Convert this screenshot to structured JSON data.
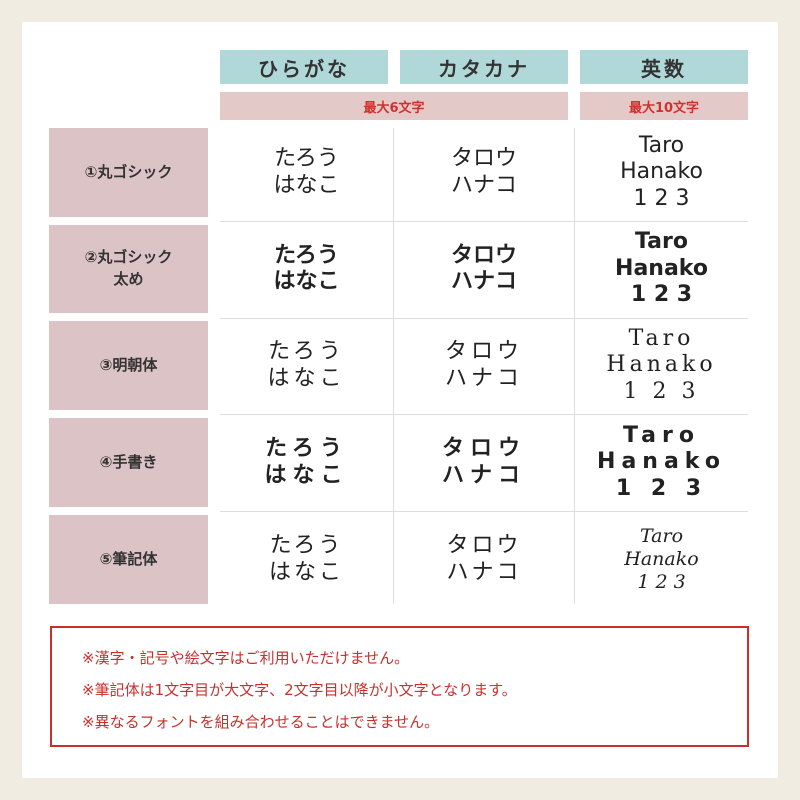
{
  "columns": [
    "ひらがな",
    "カタカナ",
    "英数"
  ],
  "limits": {
    "kana": "最大6文字",
    "alnum": "最大10文字"
  },
  "rows": [
    {
      "label": "①丸ゴシック",
      "hiragana": "たろう\nはなこ",
      "katakana": "タロウ\nハナコ",
      "alnum": "Taro\nHanako\n1 2 3"
    },
    {
      "label": "②丸ゴシック\n太め",
      "hiragana": "たろう\nはなこ",
      "katakana": "タロウ\nハナコ",
      "alnum": "Taro\nHanako\n1 2 3"
    },
    {
      "label": "③明朝体",
      "hiragana": "たろう\nはなこ",
      "katakana": "タロウ\nハナコ",
      "alnum": "Taro\nHanako\n1 2 3"
    },
    {
      "label": "④手書き",
      "hiragana": "たろう\nはなこ",
      "katakana": "タロウ\nハナコ",
      "alnum": "Taro\nHanako\n1 2 3"
    },
    {
      "label": "⑤筆記体",
      "hiragana": "たろう\nはなこ",
      "katakana": "タロウ\nハナコ",
      "alnum": "Taro\nHanako\n1 2 3"
    }
  ],
  "notes": [
    "※漢字・記号や絵文字はご利用いただけません。",
    "※筆記体は1文字目が大文字、2文字目以降が小文字となります。",
    "※異なるフォントを組み合わせることはできません。"
  ],
  "colors": {
    "header": "#b0d8d8",
    "subheader": "#e4c9c9",
    "rowheader": "#dcc3c5",
    "accent": "#c8302c",
    "background": "#f1ece2"
  }
}
